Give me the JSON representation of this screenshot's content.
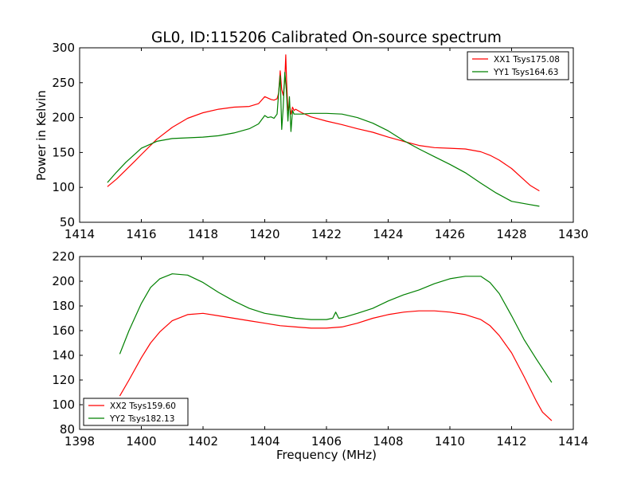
{
  "chart_data": [
    {
      "type": "line",
      "title": "GL0, ID:115206 Calibrated On-source spectrum",
      "xlabel": "",
      "ylabel": "Power in Kelvin",
      "xlim": [
        1414,
        1430
      ],
      "ylim": [
        50,
        300
      ],
      "xticks": [
        "1414",
        "1416",
        "1418",
        "1420",
        "1422",
        "1424",
        "1426",
        "1428",
        "1430"
      ],
      "yticks": [
        "50",
        "100",
        "150",
        "200",
        "250",
        "300"
      ],
      "grid": false,
      "legend_position": "upper right",
      "series": [
        {
          "name": "XX1 Tsys175.08",
          "color": "#ff0000",
          "x": [
            1414.9,
            1415.2,
            1415.5,
            1415.8,
            1416.0,
            1416.5,
            1417.0,
            1417.5,
            1418.0,
            1418.5,
            1419.0,
            1419.5,
            1419.8,
            1420.0,
            1420.1,
            1420.2,
            1420.3,
            1420.4,
            1420.45,
            1420.5,
            1420.55,
            1420.6,
            1420.65,
            1420.68,
            1420.71,
            1420.75,
            1420.8,
            1420.85,
            1420.9,
            1420.95,
            1421.0,
            1421.2,
            1421.5,
            1422.0,
            1422.5,
            1423.0,
            1423.5,
            1424.0,
            1424.5,
            1425.0,
            1425.5,
            1426.0,
            1426.5,
            1427.0,
            1427.3,
            1427.6,
            1428.0,
            1428.3,
            1428.6,
            1428.9
          ],
          "values": [
            101,
            112,
            125,
            138,
            147,
            169,
            186,
            199,
            207,
            212,
            215,
            216,
            220,
            230,
            228,
            226,
            225,
            227,
            235,
            267,
            240,
            232,
            255,
            290,
            250,
            210,
            218,
            205,
            215,
            210,
            212,
            207,
            201,
            195,
            190,
            184,
            179,
            172,
            166,
            160,
            157,
            156,
            155,
            151,
            146,
            139,
            127,
            115,
            103,
            95
          ]
        },
        {
          "name": "YY1 Tsys164.63",
          "color": "#008000",
          "x": [
            1414.9,
            1415.2,
            1415.5,
            1415.8,
            1416.0,
            1416.5,
            1417.0,
            1417.5,
            1418.0,
            1418.5,
            1419.0,
            1419.5,
            1419.8,
            1420.0,
            1420.1,
            1420.2,
            1420.3,
            1420.4,
            1420.45,
            1420.5,
            1420.55,
            1420.6,
            1420.65,
            1420.7,
            1420.75,
            1420.8,
            1420.85,
            1420.9,
            1420.95,
            1421.0,
            1421.2,
            1421.5,
            1422.0,
            1422.5,
            1423.0,
            1423.5,
            1424.0,
            1424.5,
            1425.0,
            1425.5,
            1426.0,
            1426.5,
            1427.0,
            1427.5,
            1428.0,
            1428.5,
            1428.9
          ],
          "values": [
            107,
            122,
            136,
            148,
            156,
            166,
            170,
            171,
            172,
            174,
            178,
            184,
            191,
            203,
            200,
            201,
            199,
            205,
            235,
            260,
            183,
            215,
            265,
            240,
            195,
            230,
            180,
            210,
            205,
            205,
            205,
            206,
            206,
            205,
            200,
            192,
            181,
            167,
            155,
            144,
            133,
            121,
            106,
            92,
            80,
            76,
            73
          ]
        }
      ]
    },
    {
      "type": "line",
      "title": "",
      "xlabel": "Frequency (MHz)",
      "ylabel": "",
      "xlim": [
        1398,
        1414
      ],
      "ylim": [
        80,
        220
      ],
      "xticks": [
        "1398",
        "1400",
        "1402",
        "1404",
        "1406",
        "1408",
        "1410",
        "1412",
        "1414"
      ],
      "yticks": [
        "80",
        "100",
        "120",
        "140",
        "160",
        "180",
        "200",
        "220"
      ],
      "grid": false,
      "legend_position": "lower left",
      "series": [
        {
          "name": "XX2 Tsys159.60",
          "color": "#ff0000",
          "x": [
            1399.3,
            1399.6,
            1400.0,
            1400.3,
            1400.6,
            1401.0,
            1401.5,
            1402.0,
            1402.5,
            1403.0,
            1403.5,
            1404.0,
            1404.5,
            1405.0,
            1405.5,
            1406.0,
            1406.5,
            1407.0,
            1407.5,
            1408.0,
            1408.5,
            1409.0,
            1409.5,
            1410.0,
            1410.5,
            1411.0,
            1411.3,
            1411.6,
            1412.0,
            1412.4,
            1412.8,
            1413.0,
            1413.3
          ],
          "values": [
            107,
            120,
            138,
            150,
            159,
            168,
            173,
            174,
            172,
            170,
            168,
            166,
            164,
            163,
            162,
            162,
            163,
            166,
            170,
            173,
            175,
            176,
            176,
            175,
            173,
            169,
            164,
            156,
            142,
            123,
            103,
            94,
            87
          ]
        },
        {
          "name": "YY2 Tsys182.13",
          "color": "#008000",
          "x": [
            1399.3,
            1399.6,
            1400.0,
            1400.3,
            1400.6,
            1401.0,
            1401.5,
            1402.0,
            1402.5,
            1403.0,
            1403.5,
            1404.0,
            1404.5,
            1405.0,
            1405.5,
            1406.0,
            1406.2,
            1406.3,
            1406.4,
            1406.6,
            1407.0,
            1407.5,
            1408.0,
            1408.5,
            1409.0,
            1409.5,
            1410.0,
            1410.5,
            1411.0,
            1411.3,
            1411.6,
            1412.0,
            1412.4,
            1412.8,
            1413.3
          ],
          "values": [
            141,
            160,
            182,
            195,
            202,
            206,
            205,
            199,
            191,
            184,
            178,
            174,
            172,
            170,
            169,
            169,
            170,
            175,
            170,
            171,
            174,
            178,
            184,
            189,
            193,
            198,
            202,
            204,
            204,
            199,
            190,
            172,
            153,
            137,
            118
          ]
        }
      ]
    }
  ]
}
